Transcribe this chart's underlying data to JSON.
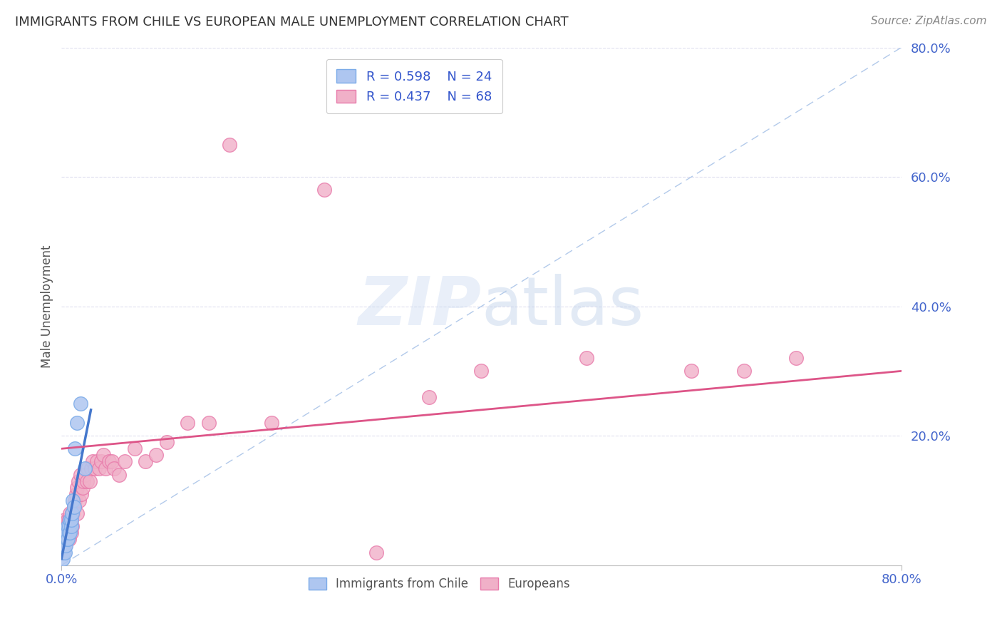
{
  "title": "IMMIGRANTS FROM CHILE VS EUROPEAN MALE UNEMPLOYMENT CORRELATION CHART",
  "source": "Source: ZipAtlas.com",
  "ylabel": "Male Unemployment",
  "chile_color": "#aec6f0",
  "chile_edge": "#7aaae8",
  "euro_color": "#f0b0c8",
  "euro_edge": "#e87aaa",
  "chile_line_color": "#4477cc",
  "euro_line_color": "#dd5588",
  "diag_line_color": "#aac4e8",
  "ytick_color": "#4466cc",
  "background_color": "#ffffff",
  "grid_color": "#ddddee",
  "xlim": [
    0,
    0.8
  ],
  "ylim": [
    0,
    0.8
  ],
  "yticks": [
    0.0,
    0.2,
    0.4,
    0.6,
    0.8
  ],
  "ytick_labels": [
    "",
    "20.0%",
    "40.0%",
    "60.0%",
    "80.0%"
  ],
  "chile_x": [
    0.001,
    0.002,
    0.002,
    0.003,
    0.003,
    0.004,
    0.004,
    0.005,
    0.005,
    0.006,
    0.006,
    0.007,
    0.007,
    0.008,
    0.008,
    0.009,
    0.009,
    0.01,
    0.011,
    0.012,
    0.013,
    0.015,
    0.018,
    0.022
  ],
  "chile_y": [
    0.01,
    0.02,
    0.03,
    0.02,
    0.04,
    0.03,
    0.05,
    0.04,
    0.05,
    0.04,
    0.06,
    0.05,
    0.06,
    0.05,
    0.07,
    0.06,
    0.07,
    0.08,
    0.1,
    0.09,
    0.18,
    0.22,
    0.25,
    0.15
  ],
  "euro_x": [
    0.001,
    0.001,
    0.001,
    0.002,
    0.002,
    0.002,
    0.003,
    0.003,
    0.003,
    0.004,
    0.004,
    0.005,
    0.005,
    0.006,
    0.006,
    0.007,
    0.007,
    0.008,
    0.008,
    0.009,
    0.009,
    0.01,
    0.01,
    0.011,
    0.012,
    0.013,
    0.014,
    0.015,
    0.015,
    0.016,
    0.017,
    0.018,
    0.019,
    0.02,
    0.021,
    0.022,
    0.024,
    0.025,
    0.027,
    0.028,
    0.03,
    0.032,
    0.034,
    0.036,
    0.038,
    0.04,
    0.042,
    0.045,
    0.048,
    0.05,
    0.055,
    0.06,
    0.07,
    0.08,
    0.09,
    0.1,
    0.12,
    0.14,
    0.16,
    0.2,
    0.25,
    0.3,
    0.35,
    0.4,
    0.5,
    0.6,
    0.65,
    0.7
  ],
  "euro_y": [
    0.02,
    0.03,
    0.05,
    0.03,
    0.04,
    0.06,
    0.03,
    0.05,
    0.07,
    0.04,
    0.06,
    0.04,
    0.06,
    0.05,
    0.07,
    0.04,
    0.07,
    0.06,
    0.08,
    0.05,
    0.07,
    0.06,
    0.08,
    0.08,
    0.09,
    0.1,
    0.11,
    0.08,
    0.12,
    0.13,
    0.1,
    0.14,
    0.11,
    0.12,
    0.13,
    0.14,
    0.13,
    0.15,
    0.13,
    0.15,
    0.16,
    0.15,
    0.16,
    0.15,
    0.16,
    0.17,
    0.15,
    0.16,
    0.16,
    0.15,
    0.14,
    0.16,
    0.18,
    0.16,
    0.17,
    0.19,
    0.22,
    0.22,
    0.65,
    0.22,
    0.58,
    0.02,
    0.26,
    0.3,
    0.32,
    0.3,
    0.3,
    0.32
  ],
  "euro_line_x0": 0.0,
  "euro_line_y0": 0.18,
  "euro_line_x1": 0.8,
  "euro_line_y1": 0.3,
  "chile_line_x0": 0.0,
  "chile_line_y0": 0.01,
  "chile_line_x1": 0.028,
  "chile_line_y1": 0.24
}
